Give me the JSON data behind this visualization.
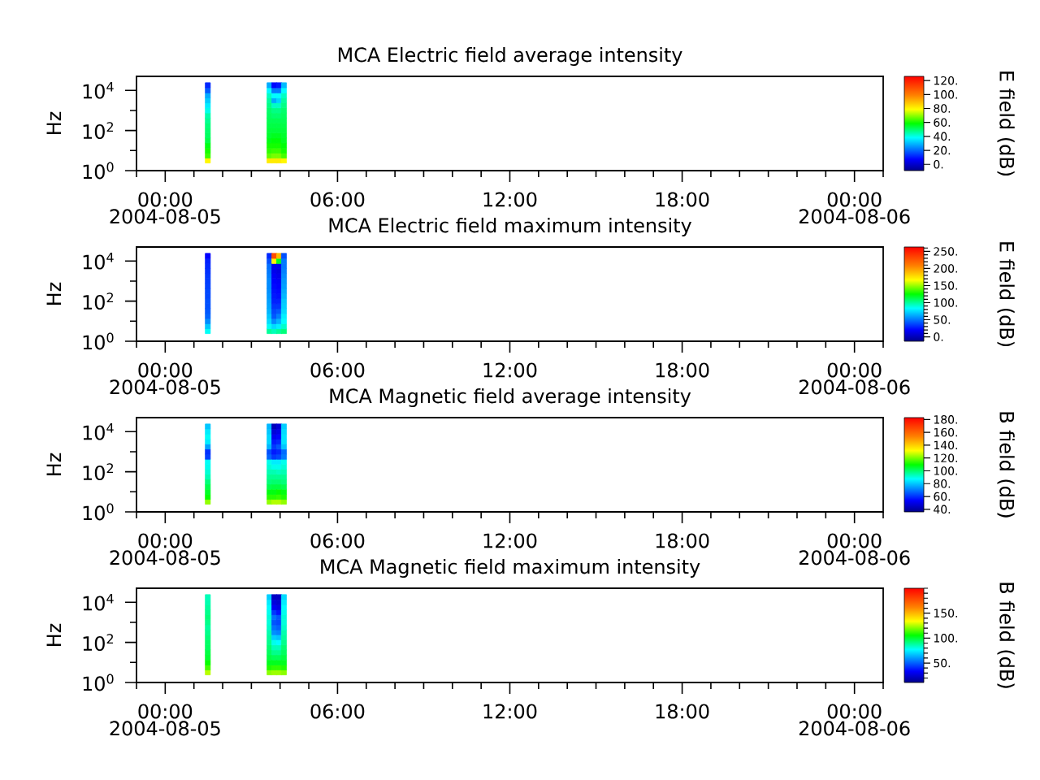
{
  "chart_data": [
    {
      "type": "scatter",
      "title": "MCA  Electric field average intensity",
      "ylabel": "Hz",
      "clabel": "E field (dB)",
      "marker": "square",
      "log": "y",
      "xlim": [
        "2004-08-04T23:00",
        "2004-08-06T01:00"
      ],
      "xticks": [
        {
          "value": "2004-08-04T23:00",
          "label": null
        },
        {
          "value": "2004-08-05T00:00",
          "label": "00:00 2004-08-05"
        },
        {
          "value": "2004-08-05T01:00",
          "label": null
        },
        {
          "value": "2004-08-05T02:00",
          "label": null
        },
        {
          "value": "2004-08-05T03:00",
          "label": null
        },
        {
          "value": "2004-08-05T04:00",
          "label": null
        },
        {
          "value": "2004-08-05T05:00",
          "label": null
        },
        {
          "value": "2004-08-05T06:00",
          "label": "06:00"
        },
        {
          "value": "2004-08-05T07:00",
          "label": null
        },
        {
          "value": "2004-08-05T08:00",
          "label": null
        },
        {
          "value": "2004-08-05T09:00",
          "label": null
        },
        {
          "value": "2004-08-05T10:00",
          "label": null
        },
        {
          "value": "2004-08-05T11:00",
          "label": null
        },
        {
          "value": "2004-08-05T12:00",
          "label": "12:00"
        },
        {
          "value": "2004-08-05T13:00",
          "label": null
        },
        {
          "value": "2004-08-05T14:00",
          "label": null
        },
        {
          "value": "2004-08-05T15:00",
          "label": null
        },
        {
          "value": "2004-08-05T16:00",
          "label": null
        },
        {
          "value": "2004-08-05T17:00",
          "label": null
        },
        {
          "value": "2004-08-05T18:00",
          "label": "18:00"
        },
        {
          "value": "2004-08-05T19:00",
          "label": null
        },
        {
          "value": "2004-08-05T20:00",
          "label": null
        },
        {
          "value": "2004-08-05T21:00",
          "label": null
        },
        {
          "value": "2004-08-05T22:00",
          "label": null
        },
        {
          "value": "2004-08-05T23:00",
          "label": null
        },
        {
          "value": "2004-08-06T00:00",
          "label": "00:00 2004-08-06"
        },
        {
          "value": "2004-08-06T01:00",
          "label": null
        }
      ],
      "ylim": [
        1,
        50000
      ],
      "yticks": [
        {
          "value": 1,
          "label": "10$^{0}$"
        },
        {
          "value": 10,
          "label": null
        },
        {
          "value": 100,
          "label": "10$^{2}$"
        },
        {
          "value": 1000,
          "label": null
        },
        {
          "value": 10000,
          "label": "10$^{4}$"
        }
      ],
      "clim": [
        -9,
        126
      ],
      "cticks": [
        {
          "value": 0,
          "label": "0."
        },
        {
          "value": 20,
          "label": "20."
        },
        {
          "value": 40,
          "label": "40."
        },
        {
          "value": 60,
          "label": "60."
        },
        {
          "value": 80,
          "label": "80."
        },
        {
          "value": 100,
          "label": "100."
        },
        {
          "value": 120,
          "label": "120."
        }
      ],
      "x": [
        "2004-08-05T01:29",
        "2004-08-05T01:29",
        "2004-08-05T01:29",
        "2004-08-05T01:29",
        "2004-08-05T01:29",
        "2004-08-05T01:29",
        "2004-08-05T01:29",
        "2004-08-05T01:29",
        "2004-08-05T01:29",
        "2004-08-05T01:29",
        "2004-08-05T01:29",
        "2004-08-05T01:29",
        "2004-08-05T01:29",
        "2004-08-05T01:29",
        "2004-08-05T01:29",
        "2004-08-05T01:29",
        "2004-08-05T03:38",
        "2004-08-05T03:38",
        "2004-08-05T03:38",
        "2004-08-05T03:38",
        "2004-08-05T03:38",
        "2004-08-05T03:38",
        "2004-08-05T03:38",
        "2004-08-05T03:38",
        "2004-08-05T03:38",
        "2004-08-05T03:38",
        "2004-08-05T03:38",
        "2004-08-05T03:38",
        "2004-08-05T03:38",
        "2004-08-05T03:38",
        "2004-08-05T03:38",
        "2004-08-05T03:38",
        "2004-08-05T03:48",
        "2004-08-05T03:48",
        "2004-08-05T03:48",
        "2004-08-05T03:48",
        "2004-08-05T03:48",
        "2004-08-05T03:48",
        "2004-08-05T03:48",
        "2004-08-05T03:48",
        "2004-08-05T03:48",
        "2004-08-05T03:48",
        "2004-08-05T03:48",
        "2004-08-05T03:48",
        "2004-08-05T03:48",
        "2004-08-05T03:48",
        "2004-08-05T03:48",
        "2004-08-05T03:48",
        "2004-08-05T03:58",
        "2004-08-05T03:58",
        "2004-08-05T03:58",
        "2004-08-05T03:58",
        "2004-08-05T03:58",
        "2004-08-05T03:58",
        "2004-08-05T03:58",
        "2004-08-05T03:58",
        "2004-08-05T03:58",
        "2004-08-05T03:58",
        "2004-08-05T03:58",
        "2004-08-05T03:58",
        "2004-08-05T03:58",
        "2004-08-05T03:58",
        "2004-08-05T03:58",
        "2004-08-05T03:58",
        "2004-08-05T04:08",
        "2004-08-05T04:08",
        "2004-08-05T04:08",
        "2004-08-05T04:08",
        "2004-08-05T04:08",
        "2004-08-05T04:08",
        "2004-08-05T04:08",
        "2004-08-05T04:08",
        "2004-08-05T04:08",
        "2004-08-05T04:08",
        "2004-08-05T04:08",
        "2004-08-05T04:08",
        "2004-08-05T04:08",
        "2004-08-05T04:08",
        "2004-08-05T04:08",
        "2004-08-05T04:08"
      ],
      "values": [
        3.2,
        5.6,
        10,
        18,
        32,
        56,
        100,
        180,
        320,
        560,
        1000,
        1800,
        3200,
        5600,
        10000,
        18000,
        3.2,
        5.6,
        10,
        18,
        32,
        56,
        100,
        180,
        320,
        560,
        1000,
        1800,
        3200,
        5600,
        10000,
        18000,
        3.2,
        5.6,
        10,
        18,
        32,
        56,
        100,
        180,
        320,
        560,
        1000,
        1800,
        3200,
        5600,
        10000,
        18000,
        3.2,
        5.6,
        10,
        18,
        32,
        56,
        100,
        180,
        320,
        560,
        1000,
        1800,
        3200,
        5600,
        10000,
        18000,
        3.2,
        5.6,
        10,
        18,
        32,
        56,
        100,
        180,
        320,
        560,
        1000,
        1800,
        3200,
        5600,
        10000,
        18000
      ],
      "cvalues": [
        80,
        63,
        60,
        57,
        53,
        51,
        50,
        49,
        47,
        45,
        40,
        36,
        32,
        28,
        18,
        12,
        82,
        66,
        62,
        60,
        57,
        55,
        54,
        53,
        52,
        51,
        50,
        48,
        46,
        43,
        38,
        28,
        82,
        68,
        63,
        60,
        58,
        56,
        54,
        53,
        52,
        50,
        48,
        43,
        28,
        38,
        22,
        8,
        82,
        68,
        63,
        60,
        58,
        56,
        54,
        53,
        52,
        50,
        48,
        43,
        33,
        38,
        22,
        10,
        80,
        64,
        60,
        58,
        56,
        55,
        54,
        53,
        52,
        51,
        50,
        48,
        46,
        43,
        38,
        30
      ]
    },
    {
      "type": "scatter",
      "title": "MCA  Electric field maximum intensity",
      "ylabel": "Hz",
      "clabel": "E field (dB)",
      "marker": "square",
      "log": "y",
      "xlim": [
        "2004-08-04T23:00",
        "2004-08-06T01:00"
      ],
      "xticks": [
        {
          "value": "2004-08-04T23:00",
          "label": null
        },
        {
          "value": "2004-08-05T00:00",
          "label": "00:00 2004-08-05"
        },
        {
          "value": "2004-08-05T01:00",
          "label": null
        },
        {
          "value": "2004-08-05T02:00",
          "label": null
        },
        {
          "value": "2004-08-05T03:00",
          "label": null
        },
        {
          "value": "2004-08-05T04:00",
          "label": null
        },
        {
          "value": "2004-08-05T05:00",
          "label": null
        },
        {
          "value": "2004-08-05T06:00",
          "label": "06:00"
        },
        {
          "value": "2004-08-05T07:00",
          "label": null
        },
        {
          "value": "2004-08-05T08:00",
          "label": null
        },
        {
          "value": "2004-08-05T09:00",
          "label": null
        },
        {
          "value": "2004-08-05T10:00",
          "label": null
        },
        {
          "value": "2004-08-05T11:00",
          "label": null
        },
        {
          "value": "2004-08-05T12:00",
          "label": "12:00"
        },
        {
          "value": "2004-08-05T13:00",
          "label": null
        },
        {
          "value": "2004-08-05T14:00",
          "label": null
        },
        {
          "value": "2004-08-05T15:00",
          "label": null
        },
        {
          "value": "2004-08-05T16:00",
          "label": null
        },
        {
          "value": "2004-08-05T17:00",
          "label": null
        },
        {
          "value": "2004-08-05T18:00",
          "label": "18:00"
        },
        {
          "value": "2004-08-05T19:00",
          "label": null
        },
        {
          "value": "2004-08-05T20:00",
          "label": null
        },
        {
          "value": "2004-08-05T21:00",
          "label": null
        },
        {
          "value": "2004-08-05T22:00",
          "label": null
        },
        {
          "value": "2004-08-05T23:00",
          "label": null
        },
        {
          "value": "2004-08-06T00:00",
          "label": "00:00 2004-08-06"
        },
        {
          "value": "2004-08-06T01:00",
          "label": null
        }
      ],
      "ylim": [
        1,
        50000
      ],
      "yticks": [
        {
          "value": 1,
          "label": "10$^{0}$"
        },
        {
          "value": 10,
          "label": null
        },
        {
          "value": 100,
          "label": "10$^{2}$"
        },
        {
          "value": 1000,
          "label": null
        },
        {
          "value": 10000,
          "label": "10$^{4}$"
        }
      ],
      "clim": [
        -13,
        263
      ],
      "cticks": [
        {
          "value": 0,
          "label": "0."
        },
        {
          "value": 10,
          "label": null
        },
        {
          "value": 20,
          "label": null
        },
        {
          "value": 30,
          "label": null
        },
        {
          "value": 40,
          "label": null
        },
        {
          "value": 50,
          "label": "50."
        },
        {
          "value": 60,
          "label": null
        },
        {
          "value": 70,
          "label": null
        },
        {
          "value": 80,
          "label": null
        },
        {
          "value": 90,
          "label": null
        },
        {
          "value": 100,
          "label": "100."
        },
        {
          "value": 110,
          "label": null
        },
        {
          "value": 120,
          "label": null
        },
        {
          "value": 130,
          "label": null
        },
        {
          "value": 140,
          "label": null
        },
        {
          "value": 150,
          "label": "150."
        },
        {
          "value": 160,
          "label": null
        },
        {
          "value": 170,
          "label": null
        },
        {
          "value": 180,
          "label": null
        },
        {
          "value": 190,
          "label": null
        },
        {
          "value": 200,
          "label": "200."
        },
        {
          "value": 210,
          "label": null
        },
        {
          "value": 220,
          "label": null
        },
        {
          "value": 230,
          "label": null
        },
        {
          "value": 240,
          "label": null
        },
        {
          "value": 250,
          "label": "250."
        },
        {
          "value": 260,
          "label": null
        }
      ],
      "x": [
        "2004-08-05T01:29",
        "2004-08-05T01:29",
        "2004-08-05T01:29",
        "2004-08-05T01:29",
        "2004-08-05T01:29",
        "2004-08-05T01:29",
        "2004-08-05T01:29",
        "2004-08-05T01:29",
        "2004-08-05T01:29",
        "2004-08-05T01:29",
        "2004-08-05T01:29",
        "2004-08-05T01:29",
        "2004-08-05T01:29",
        "2004-08-05T01:29",
        "2004-08-05T01:29",
        "2004-08-05T01:29",
        "2004-08-05T03:38",
        "2004-08-05T03:38",
        "2004-08-05T03:38",
        "2004-08-05T03:38",
        "2004-08-05T03:38",
        "2004-08-05T03:38",
        "2004-08-05T03:38",
        "2004-08-05T03:38",
        "2004-08-05T03:38",
        "2004-08-05T03:38",
        "2004-08-05T03:38",
        "2004-08-05T03:38",
        "2004-08-05T03:38",
        "2004-08-05T03:38",
        "2004-08-05T03:38",
        "2004-08-05T03:38",
        "2004-08-05T03:48",
        "2004-08-05T03:48",
        "2004-08-05T03:48",
        "2004-08-05T03:48",
        "2004-08-05T03:48",
        "2004-08-05T03:48",
        "2004-08-05T03:48",
        "2004-08-05T03:48",
        "2004-08-05T03:48",
        "2004-08-05T03:48",
        "2004-08-05T03:48",
        "2004-08-05T03:48",
        "2004-08-05T03:48",
        "2004-08-05T03:48",
        "2004-08-05T03:48",
        "2004-08-05T03:48",
        "2004-08-05T03:58",
        "2004-08-05T03:58",
        "2004-08-05T03:58",
        "2004-08-05T03:58",
        "2004-08-05T03:58",
        "2004-08-05T03:58",
        "2004-08-05T03:58",
        "2004-08-05T03:58",
        "2004-08-05T03:58",
        "2004-08-05T03:58",
        "2004-08-05T03:58",
        "2004-08-05T03:58",
        "2004-08-05T03:58",
        "2004-08-05T03:58",
        "2004-08-05T03:58",
        "2004-08-05T03:58",
        "2004-08-05T04:08",
        "2004-08-05T04:08",
        "2004-08-05T04:08",
        "2004-08-05T04:08",
        "2004-08-05T04:08",
        "2004-08-05T04:08",
        "2004-08-05T04:08",
        "2004-08-05T04:08",
        "2004-08-05T04:08",
        "2004-08-05T04:08",
        "2004-08-05T04:08",
        "2004-08-05T04:08",
        "2004-08-05T04:08",
        "2004-08-05T04:08",
        "2004-08-05T04:08",
        "2004-08-05T04:08"
      ],
      "values": [
        3.2,
        5.6,
        10,
        18,
        32,
        56,
        100,
        180,
        320,
        560,
        1000,
        1800,
        3200,
        5600,
        10000,
        18000,
        3.2,
        5.6,
        10,
        18,
        32,
        56,
        100,
        180,
        320,
        560,
        1000,
        1800,
        3200,
        5600,
        10000,
        18000,
        3.2,
        5.6,
        10,
        18,
        32,
        56,
        100,
        180,
        320,
        560,
        1000,
        1800,
        3200,
        5600,
        10000,
        18000,
        3.2,
        5.6,
        10,
        18,
        32,
        56,
        100,
        180,
        320,
        560,
        1000,
        1800,
        3200,
        5600,
        10000,
        18000,
        3.2,
        5.6,
        10,
        18,
        32,
        56,
        100,
        180,
        320,
        560,
        1000,
        1800,
        3200,
        5600,
        10000,
        18000
      ],
      "cvalues": [
        85,
        70,
        55,
        45,
        42,
        40,
        40,
        38,
        38,
        36,
        35,
        34,
        32,
        30,
        28,
        20,
        100,
        85,
        75,
        70,
        65,
        62,
        60,
        58,
        56,
        55,
        55,
        52,
        50,
        48,
        40,
        30,
        95,
        75,
        55,
        42,
        38,
        33,
        28,
        26,
        24,
        22,
        20,
        18,
        15,
        15,
        170,
        230,
        100,
        80,
        65,
        52,
        42,
        33,
        28,
        24,
        22,
        20,
        18,
        15,
        12,
        15,
        120,
        190,
        105,
        92,
        84,
        80,
        75,
        72,
        70,
        66,
        63,
        60,
        58,
        55,
        52,
        50,
        50,
        40
      ]
    },
    {
      "type": "scatter",
      "title": "MCA  Magnetic field average intensity",
      "ylabel": "Hz",
      "clabel": "B field (dB)",
      "marker": "square",
      "log": "y",
      "xlim": [
        "2004-08-04T23:00",
        "2004-08-06T01:00"
      ],
      "xticks": [
        {
          "value": "2004-08-04T23:00",
          "label": null
        },
        {
          "value": "2004-08-05T00:00",
          "label": "00:00 2004-08-05"
        },
        {
          "value": "2004-08-05T01:00",
          "label": null
        },
        {
          "value": "2004-08-05T02:00",
          "label": null
        },
        {
          "value": "2004-08-05T03:00",
          "label": null
        },
        {
          "value": "2004-08-05T04:00",
          "label": null
        },
        {
          "value": "2004-08-05T05:00",
          "label": null
        },
        {
          "value": "2004-08-05T06:00",
          "label": "06:00"
        },
        {
          "value": "2004-08-05T07:00",
          "label": null
        },
        {
          "value": "2004-08-05T08:00",
          "label": null
        },
        {
          "value": "2004-08-05T09:00",
          "label": null
        },
        {
          "value": "2004-08-05T10:00",
          "label": null
        },
        {
          "value": "2004-08-05T11:00",
          "label": null
        },
        {
          "value": "2004-08-05T12:00",
          "label": "12:00"
        },
        {
          "value": "2004-08-05T13:00",
          "label": null
        },
        {
          "value": "2004-08-05T14:00",
          "label": null
        },
        {
          "value": "2004-08-05T15:00",
          "label": null
        },
        {
          "value": "2004-08-05T16:00",
          "label": null
        },
        {
          "value": "2004-08-05T17:00",
          "label": null
        },
        {
          "value": "2004-08-05T18:00",
          "label": "18:00"
        },
        {
          "value": "2004-08-05T19:00",
          "label": null
        },
        {
          "value": "2004-08-05T20:00",
          "label": null
        },
        {
          "value": "2004-08-05T21:00",
          "label": null
        },
        {
          "value": "2004-08-05T22:00",
          "label": null
        },
        {
          "value": "2004-08-05T23:00",
          "label": null
        },
        {
          "value": "2004-08-06T00:00",
          "label": "00:00 2004-08-06"
        },
        {
          "value": "2004-08-06T01:00",
          "label": null
        }
      ],
      "ylim": [
        1,
        50000
      ],
      "yticks": [
        {
          "value": 1,
          "label": "10$^{0}$"
        },
        {
          "value": 10,
          "label": null
        },
        {
          "value": 100,
          "label": "10$^{2}$"
        },
        {
          "value": 1000,
          "label": null
        },
        {
          "value": 10000,
          "label": "10$^{4}$"
        }
      ],
      "clim": [
        36,
        183
      ],
      "cticks": [
        {
          "value": 40,
          "label": "40."
        },
        {
          "value": 60,
          "label": "60."
        },
        {
          "value": 80,
          "label": "80."
        },
        {
          "value": 100,
          "label": "100."
        },
        {
          "value": 120,
          "label": "120."
        },
        {
          "value": 140,
          "label": "140."
        },
        {
          "value": 160,
          "label": "160."
        },
        {
          "value": 180,
          "label": "180."
        }
      ],
      "x": [
        "2004-08-05T01:29",
        "2004-08-05T01:29",
        "2004-08-05T01:29",
        "2004-08-05T01:29",
        "2004-08-05T01:29",
        "2004-08-05T01:29",
        "2004-08-05T01:29",
        "2004-08-05T01:29",
        "2004-08-05T01:29",
        "2004-08-05T01:29",
        "2004-08-05T01:29",
        "2004-08-05T01:29",
        "2004-08-05T01:29",
        "2004-08-05T01:29",
        "2004-08-05T01:29",
        "2004-08-05T01:29",
        "2004-08-05T03:38",
        "2004-08-05T03:38",
        "2004-08-05T03:38",
        "2004-08-05T03:38",
        "2004-08-05T03:38",
        "2004-08-05T03:38",
        "2004-08-05T03:38",
        "2004-08-05T03:38",
        "2004-08-05T03:38",
        "2004-08-05T03:38",
        "2004-08-05T03:38",
        "2004-08-05T03:38",
        "2004-08-05T03:38",
        "2004-08-05T03:38",
        "2004-08-05T03:38",
        "2004-08-05T03:38",
        "2004-08-05T03:48",
        "2004-08-05T03:48",
        "2004-08-05T03:48",
        "2004-08-05T03:48",
        "2004-08-05T03:48",
        "2004-08-05T03:48",
        "2004-08-05T03:48",
        "2004-08-05T03:48",
        "2004-08-05T03:48",
        "2004-08-05T03:48",
        "2004-08-05T03:48",
        "2004-08-05T03:48",
        "2004-08-05T03:48",
        "2004-08-05T03:48",
        "2004-08-05T03:48",
        "2004-08-05T03:48",
        "2004-08-05T03:58",
        "2004-08-05T03:58",
        "2004-08-05T03:58",
        "2004-08-05T03:58",
        "2004-08-05T03:58",
        "2004-08-05T03:58",
        "2004-08-05T03:58",
        "2004-08-05T03:58",
        "2004-08-05T03:58",
        "2004-08-05T03:58",
        "2004-08-05T03:58",
        "2004-08-05T03:58",
        "2004-08-05T03:58",
        "2004-08-05T03:58",
        "2004-08-05T03:58",
        "2004-08-05T03:58",
        "2004-08-05T04:08",
        "2004-08-05T04:08",
        "2004-08-05T04:08",
        "2004-08-05T04:08",
        "2004-08-05T04:08",
        "2004-08-05T04:08",
        "2004-08-05T04:08",
        "2004-08-05T04:08",
        "2004-08-05T04:08",
        "2004-08-05T04:08",
        "2004-08-05T04:08",
        "2004-08-05T04:08",
        "2004-08-05T04:08",
        "2004-08-05T04:08",
        "2004-08-05T04:08",
        "2004-08-05T04:08"
      ],
      "values": [
        3.2,
        5.6,
        10,
        18,
        32,
        56,
        100,
        180,
        320,
        560,
        1000,
        1800,
        3200,
        5600,
        10000,
        18000,
        3.2,
        5.6,
        10,
        18,
        32,
        56,
        100,
        180,
        320,
        560,
        1000,
        1800,
        3200,
        5600,
        10000,
        18000,
        3.2,
        5.6,
        10,
        18,
        32,
        56,
        100,
        180,
        320,
        560,
        1000,
        1800,
        3200,
        5600,
        10000,
        18000,
        3.2,
        5.6,
        10,
        18,
        32,
        56,
        100,
        180,
        320,
        560,
        1000,
        1800,
        3200,
        5600,
        10000,
        18000,
        3.2,
        5.6,
        10,
        18,
        32,
        56,
        100,
        180,
        320,
        560,
        1000,
        1800,
        3200,
        5600,
        10000,
        18000
      ],
      "cvalues": [
        122,
        110,
        106,
        103,
        99,
        94,
        91,
        89,
        88,
        62,
        60,
        75,
        85,
        88,
        85,
        80,
        122,
        113,
        108,
        103,
        99,
        97,
        94,
        91,
        89,
        67,
        64,
        78,
        82,
        82,
        80,
        78,
        125,
        113,
        108,
        104,
        100,
        97,
        94,
        89,
        85,
        61,
        57,
        61,
        57,
        52,
        48,
        43,
        125,
        114,
        110,
        104,
        100,
        97,
        93,
        89,
        85,
        63,
        59,
        65,
        59,
        54,
        50,
        47,
        122,
        112,
        108,
        103,
        99,
        97,
        94,
        91,
        89,
        70,
        68,
        80,
        84,
        84,
        83,
        81
      ]
    },
    {
      "type": "scatter",
      "title": "MCA  Magnetic field maximum intensity",
      "ylabel": "Hz",
      "clabel": "B field (dB)",
      "marker": "square",
      "log": "y",
      "xlim": [
        "2004-08-04T23:00",
        "2004-08-06T01:00"
      ],
      "xticks": [
        {
          "value": "2004-08-04T23:00",
          "label": null
        },
        {
          "value": "2004-08-05T00:00",
          "label": "00:00 2004-08-05"
        },
        {
          "value": "2004-08-05T01:00",
          "label": null
        },
        {
          "value": "2004-08-05T02:00",
          "label": null
        },
        {
          "value": "2004-08-05T03:00",
          "label": null
        },
        {
          "value": "2004-08-05T04:00",
          "label": null
        },
        {
          "value": "2004-08-05T05:00",
          "label": null
        },
        {
          "value": "2004-08-05T06:00",
          "label": "06:00"
        },
        {
          "value": "2004-08-05T07:00",
          "label": null
        },
        {
          "value": "2004-08-05T08:00",
          "label": null
        },
        {
          "value": "2004-08-05T09:00",
          "label": null
        },
        {
          "value": "2004-08-05T10:00",
          "label": null
        },
        {
          "value": "2004-08-05T11:00",
          "label": null
        },
        {
          "value": "2004-08-05T12:00",
          "label": "12:00"
        },
        {
          "value": "2004-08-05T13:00",
          "label": null
        },
        {
          "value": "2004-08-05T14:00",
          "label": null
        },
        {
          "value": "2004-08-05T15:00",
          "label": null
        },
        {
          "value": "2004-08-05T16:00",
          "label": null
        },
        {
          "value": "2004-08-05T17:00",
          "label": null
        },
        {
          "value": "2004-08-05T18:00",
          "label": "18:00"
        },
        {
          "value": "2004-08-05T19:00",
          "label": null
        },
        {
          "value": "2004-08-05T20:00",
          "label": null
        },
        {
          "value": "2004-08-05T21:00",
          "label": null
        },
        {
          "value": "2004-08-05T22:00",
          "label": null
        },
        {
          "value": "2004-08-05T23:00",
          "label": null
        },
        {
          "value": "2004-08-06T00:00",
          "label": "00:00 2004-08-06"
        },
        {
          "value": "2004-08-06T01:00",
          "label": null
        }
      ],
      "ylim": [
        1,
        50000
      ],
      "yticks": [
        {
          "value": 1,
          "label": "10$^{0}$"
        },
        {
          "value": 10,
          "label": null
        },
        {
          "value": 100,
          "label": "10$^{2}$"
        },
        {
          "value": 1000,
          "label": null
        },
        {
          "value": 10000,
          "label": "10$^{4}$"
        }
      ],
      "clim": [
        11,
        200
      ],
      "cticks": [
        {
          "value": 20,
          "label": null
        },
        {
          "value": 30,
          "label": null
        },
        {
          "value": 40,
          "label": null
        },
        {
          "value": 50,
          "label": "50."
        },
        {
          "value": 60,
          "label": null
        },
        {
          "value": 70,
          "label": null
        },
        {
          "value": 80,
          "label": null
        },
        {
          "value": 90,
          "label": null
        },
        {
          "value": 100,
          "label": "100."
        },
        {
          "value": 110,
          "label": null
        },
        {
          "value": 120,
          "label": null
        },
        {
          "value": 130,
          "label": null
        },
        {
          "value": 140,
          "label": null
        },
        {
          "value": 150,
          "label": "150."
        },
        {
          "value": 160,
          "label": null
        },
        {
          "value": 170,
          "label": null
        },
        {
          "value": 180,
          "label": null
        },
        {
          "value": 190,
          "label": null
        },
        {
          "value": 200,
          "label": null
        }
      ],
      "x": [
        "2004-08-05T01:29",
        "2004-08-05T01:29",
        "2004-08-05T01:29",
        "2004-08-05T01:29",
        "2004-08-05T01:29",
        "2004-08-05T01:29",
        "2004-08-05T01:29",
        "2004-08-05T01:29",
        "2004-08-05T01:29",
        "2004-08-05T01:29",
        "2004-08-05T01:29",
        "2004-08-05T01:29",
        "2004-08-05T01:29",
        "2004-08-05T01:29",
        "2004-08-05T01:29",
        "2004-08-05T01:29",
        "2004-08-05T03:38",
        "2004-08-05T03:38",
        "2004-08-05T03:38",
        "2004-08-05T03:38",
        "2004-08-05T03:38",
        "2004-08-05T03:38",
        "2004-08-05T03:38",
        "2004-08-05T03:38",
        "2004-08-05T03:38",
        "2004-08-05T03:38",
        "2004-08-05T03:38",
        "2004-08-05T03:38",
        "2004-08-05T03:38",
        "2004-08-05T03:38",
        "2004-08-05T03:38",
        "2004-08-05T03:38",
        "2004-08-05T03:48",
        "2004-08-05T03:48",
        "2004-08-05T03:48",
        "2004-08-05T03:48",
        "2004-08-05T03:48",
        "2004-08-05T03:48",
        "2004-08-05T03:48",
        "2004-08-05T03:48",
        "2004-08-05T03:48",
        "2004-08-05T03:48",
        "2004-08-05T03:48",
        "2004-08-05T03:48",
        "2004-08-05T03:48",
        "2004-08-05T03:48",
        "2004-08-05T03:48",
        "2004-08-05T03:48",
        "2004-08-05T03:58",
        "2004-08-05T03:58",
        "2004-08-05T03:58",
        "2004-08-05T03:58",
        "2004-08-05T03:58",
        "2004-08-05T03:58",
        "2004-08-05T03:58",
        "2004-08-05T03:58",
        "2004-08-05T03:58",
        "2004-08-05T03:58",
        "2004-08-05T03:58",
        "2004-08-05T03:58",
        "2004-08-05T03:58",
        "2004-08-05T03:58",
        "2004-08-05T03:58",
        "2004-08-05T03:58",
        "2004-08-05T04:08",
        "2004-08-05T04:08",
        "2004-08-05T04:08",
        "2004-08-05T04:08",
        "2004-08-05T04:08",
        "2004-08-05T04:08",
        "2004-08-05T04:08",
        "2004-08-05T04:08",
        "2004-08-05T04:08",
        "2004-08-05T04:08",
        "2004-08-05T04:08",
        "2004-08-05T04:08",
        "2004-08-05T04:08",
        "2004-08-05T04:08",
        "2004-08-05T04:08",
        "2004-08-05T04:08"
      ],
      "values": [
        3.2,
        5.6,
        10,
        18,
        32,
        56,
        100,
        180,
        320,
        560,
        1000,
        1800,
        3200,
        5600,
        10000,
        18000,
        3.2,
        5.6,
        10,
        18,
        32,
        56,
        100,
        180,
        320,
        560,
        1000,
        1800,
        3200,
        5600,
        10000,
        18000,
        3.2,
        5.6,
        10,
        18,
        32,
        56,
        100,
        180,
        320,
        560,
        1000,
        1800,
        3200,
        5600,
        10000,
        18000,
        3.2,
        5.6,
        10,
        18,
        32,
        56,
        100,
        180,
        320,
        560,
        1000,
        1800,
        3200,
        5600,
        10000,
        18000,
        3.2,
        5.6,
        10,
        18,
        32,
        56,
        100,
        180,
        320,
        560,
        1000,
        1800,
        3200,
        5600,
        10000,
        18000
      ],
      "cvalues": [
        126,
        113,
        106,
        100,
        98,
        95,
        94,
        92,
        90,
        88,
        90,
        92,
        90,
        88,
        86,
        85,
        121,
        109,
        102,
        98,
        95,
        93,
        90,
        88,
        86,
        83,
        81,
        81,
        79,
        77,
        74,
        69,
        123,
        111,
        102,
        96,
        90,
        85,
        79,
        69,
        58,
        53,
        48,
        53,
        43,
        32,
        27,
        22,
        123,
        111,
        102,
        96,
        90,
        85,
        77,
        67,
        56,
        50,
        46,
        48,
        37,
        29,
        25,
        22,
        121,
        109,
        102,
        98,
        95,
        93,
        90,
        88,
        86,
        83,
        81,
        81,
        79,
        77,
        74,
        71
      ]
    }
  ]
}
